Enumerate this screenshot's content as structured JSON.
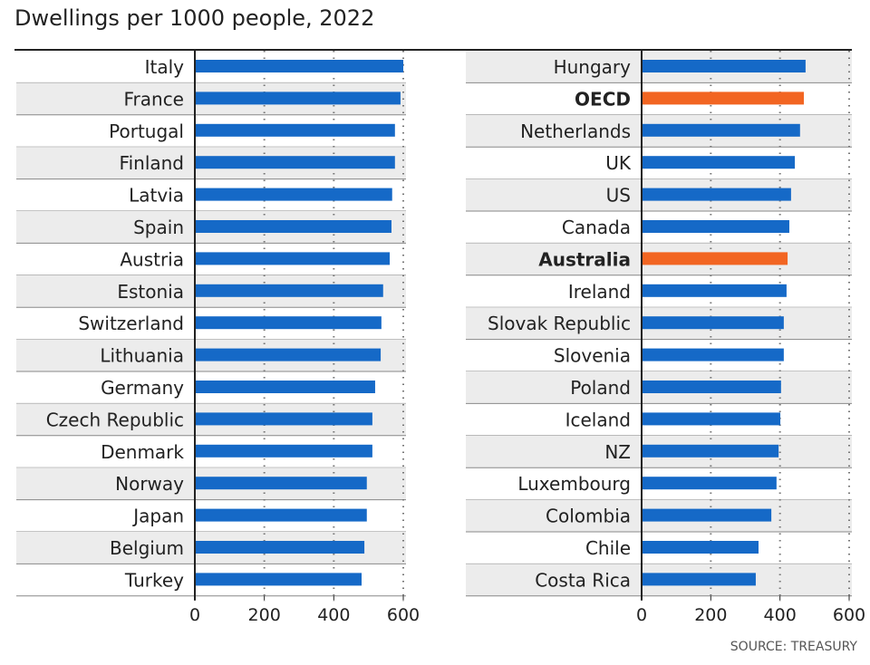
{
  "chart_data": [
    {
      "type": "bar",
      "orientation": "horizontal",
      "title": "Dwellings per 1000 people, 2022",
      "categories": [
        "Italy",
        "France",
        "Portugal",
        "Finland",
        "Latvia",
        "Spain",
        "Austria",
        "Estonia",
        "Switzerland",
        "Lithuania",
        "Germany",
        "Czech Republic",
        "Denmark",
        "Norway",
        "Japan",
        "Belgium",
        "Turkey"
      ],
      "values": [
        600,
        592,
        576,
        576,
        568,
        566,
        561,
        542,
        537,
        535,
        519,
        511,
        511,
        495,
        495,
        488,
        480
      ],
      "highlight": [],
      "xlim": [
        0,
        600
      ],
      "xticks": [
        "0",
        "200",
        "400",
        "600"
      ],
      "grid": "dotted vertical"
    },
    {
      "type": "bar",
      "orientation": "horizontal",
      "categories": [
        "Hungary",
        "OECD",
        "Netherlands",
        "UK",
        "US",
        "Canada",
        "Australia",
        "Ireland",
        "Slovak Republic",
        "Slovenia",
        "Poland",
        "Iceland",
        "NZ",
        "Luxembourg",
        "Colombia",
        "Chile",
        "Costa Rica"
      ],
      "values": [
        474,
        469,
        458,
        443,
        432,
        427,
        422,
        419,
        411,
        411,
        403,
        401,
        396,
        390,
        375,
        338,
        330
      ],
      "highlight": [
        "OECD",
        "Australia"
      ],
      "xlim": [
        0,
        600
      ],
      "xticks": [
        "0",
        "200",
        "400",
        "600"
      ],
      "grid": "dotted vertical"
    }
  ],
  "title": "Dwellings per 1000 people, 2022",
  "source": "SOURCE: TREASURY",
  "colors": {
    "bar": "#1569c7",
    "highlight": "#f26522",
    "stripe": "#ececec",
    "rule": "#888888"
  }
}
